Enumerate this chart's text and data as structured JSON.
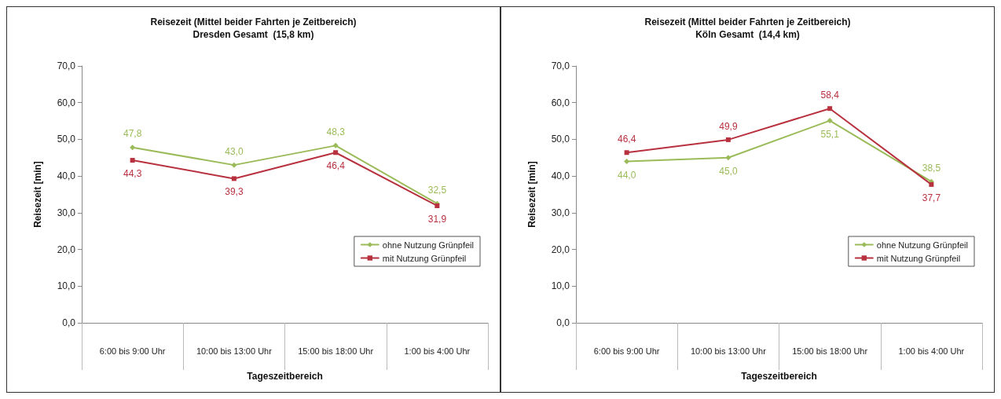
{
  "chart_data": [
    {
      "type": "line",
      "title": "Reisezeit (Mittel beider Fahrten je Zeitbereich)",
      "subtitle": "Dresden Gesamt  (15,8 km)",
      "xlabel": "Tageszeitbereich",
      "ylabel": "Reisezeit [min]",
      "categories": [
        "6:00 bis 9:00 Uhr",
        "10:00 bis 13:00 Uhr",
        "15:00 bis 18:00 Uhr",
        "1:00 bis 4:00 Uhr"
      ],
      "ylim": [
        0,
        70
      ],
      "yticks": [
        {
          "value": 0,
          "label": "0,0"
        },
        {
          "value": 10,
          "label": "10,0"
        },
        {
          "value": 20,
          "label": "20,0"
        },
        {
          "value": 30,
          "label": "30,0"
        },
        {
          "value": 40,
          "label": "40,0"
        },
        {
          "value": 50,
          "label": "50,0"
        },
        {
          "value": 60,
          "label": "60,0"
        },
        {
          "value": 70,
          "label": "70,0"
        }
      ],
      "grid": false,
      "legend": "bottom right",
      "line_style": "solid",
      "series": [
        {
          "name": "ohne Nutzung Grünpfeil",
          "color": "#9bbb59",
          "marker": "diamond",
          "values": [
            47.8,
            43.0,
            48.3,
            32.5
          ],
          "value_labels": [
            "47,8",
            "43,0",
            "48,3",
            "32,5"
          ]
        },
        {
          "name": "mit Nutzung Grünpfeil",
          "color": "#b8313f",
          "marker": "square",
          "values": [
            44.3,
            39.3,
            46.4,
            31.9
          ],
          "value_labels": [
            "44,3",
            "39,3",
            "46,4",
            "31,9"
          ]
        }
      ]
    },
    {
      "type": "line",
      "title": "Reisezeit (Mittel beider Fahrten je Zeitbereich)",
      "subtitle": "Köln Gesamt  (14,4 km)",
      "xlabel": "Tageszeitbereich",
      "ylabel": "Reisezeit [min]",
      "categories": [
        "6:00 bis 9:00 Uhr",
        "10:00 bis 13:00 Uhr",
        "15:00 bis 18:00 Uhr",
        "1:00 bis 4:00 Uhr"
      ],
      "ylim": [
        0,
        70
      ],
      "yticks": [
        {
          "value": 0,
          "label": "0,0"
        },
        {
          "value": 10,
          "label": "10,0"
        },
        {
          "value": 20,
          "label": "20,0"
        },
        {
          "value": 30,
          "label": "30,0"
        },
        {
          "value": 40,
          "label": "40,0"
        },
        {
          "value": 50,
          "label": "50,0"
        },
        {
          "value": 60,
          "label": "60,0"
        },
        {
          "value": 70,
          "label": "70,0"
        }
      ],
      "grid": false,
      "legend": "bottom right",
      "line_style": "solid",
      "series": [
        {
          "name": "ohne Nutzung Grünpfeil",
          "color": "#9bbb59",
          "marker": "diamond",
          "values": [
            44.0,
            45.0,
            55.1,
            38.5
          ],
          "value_labels": [
            "44,0",
            "45,0",
            "55,1",
            "38,5"
          ]
        },
        {
          "name": "mit Nutzung Grünpfeil",
          "color": "#b8313f",
          "marker": "square",
          "values": [
            46.4,
            49.9,
            58.4,
            37.7
          ],
          "value_labels": [
            "46,4",
            "49,9",
            "58,4",
            "37,7"
          ]
        }
      ]
    }
  ]
}
